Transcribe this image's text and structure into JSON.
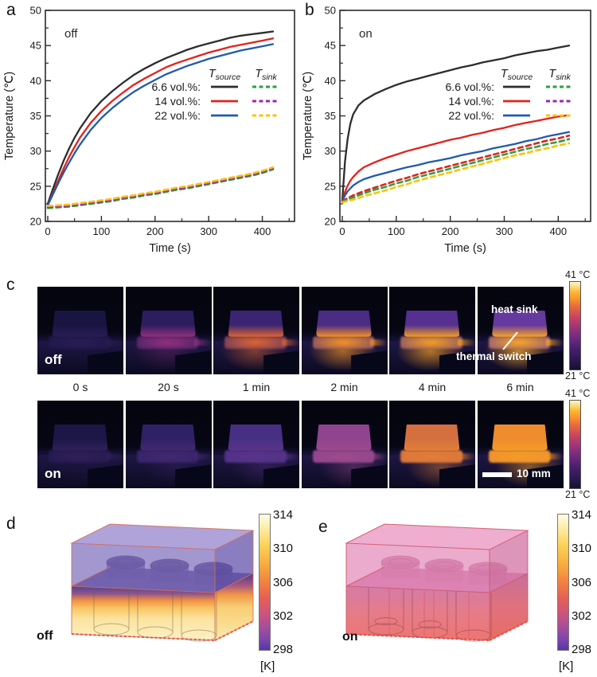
{
  "panel_letters": {
    "a": "a",
    "b": "b",
    "c": "c",
    "d": "d",
    "e": "e"
  },
  "chart_data": [
    {
      "id": "a",
      "type": "line",
      "inside_label": "off",
      "xlabel": "Time (s)",
      "ylabel": "Temperature (℃)",
      "xlim": [
        0,
        460
      ],
      "ylim": [
        20,
        50
      ],
      "xticks": [
        0,
        100,
        200,
        300,
        400
      ],
      "yticks": [
        20,
        25,
        30,
        35,
        40,
        45,
        50
      ],
      "legend": {
        "col_headers": [
          "T_source",
          "T_sink"
        ],
        "rows": [
          {
            "label": "6.6 vol.%:",
            "source_color": "#2d2d2d",
            "sink_color": "#2f9e44"
          },
          {
            "label": "14 vol.%:",
            "source_color": "#e3211c",
            "sink_color": "#9c27b0"
          },
          {
            "label": "22 vol.%:",
            "source_color": "#1f5bab",
            "sink_color": "#ffc107"
          }
        ]
      },
      "series": [
        {
          "name": "6.6 vol.% T_source",
          "color": "#2d2d2d",
          "style": "solid",
          "x": [
            0,
            10,
            20,
            30,
            40,
            50,
            60,
            80,
            100,
            120,
            140,
            160,
            180,
            200,
            220,
            240,
            260,
            280,
            300,
            320,
            340,
            360,
            380,
            400,
            420
          ],
          "y": [
            22.5,
            24.7,
            26.8,
            28.7,
            30.4,
            31.9,
            33.2,
            35.4,
            37.1,
            38.5,
            39.7,
            40.8,
            41.7,
            42.5,
            43.2,
            43.8,
            44.4,
            44.9,
            45.3,
            45.7,
            46.1,
            46.4,
            46.6,
            46.8,
            47.0
          ]
        },
        {
          "name": "14 vol.% T_source",
          "color": "#e3211c",
          "style": "solid",
          "x": [
            0,
            10,
            20,
            30,
            40,
            50,
            60,
            80,
            100,
            120,
            140,
            160,
            180,
            200,
            220,
            240,
            260,
            280,
            300,
            320,
            340,
            360,
            380,
            400,
            420
          ],
          "y": [
            22.3,
            24.1,
            25.9,
            27.6,
            29.2,
            30.6,
            31.9,
            34.0,
            35.7,
            37.1,
            38.3,
            39.4,
            40.3,
            41.1,
            41.9,
            42.5,
            43.0,
            43.5,
            44.0,
            44.4,
            44.8,
            45.1,
            45.4,
            45.7,
            46.0
          ]
        },
        {
          "name": "22 vol.% T_source",
          "color": "#1f5bab",
          "style": "solid",
          "x": [
            0,
            10,
            20,
            30,
            40,
            50,
            60,
            80,
            100,
            120,
            140,
            160,
            180,
            200,
            220,
            240,
            260,
            280,
            300,
            320,
            340,
            360,
            380,
            400,
            420
          ],
          "y": [
            22.3,
            23.9,
            25.5,
            27.0,
            28.4,
            29.7,
            30.9,
            33.0,
            34.7,
            36.1,
            37.3,
            38.4,
            39.3,
            40.1,
            40.9,
            41.5,
            42.1,
            42.6,
            43.1,
            43.5,
            43.9,
            44.3,
            44.6,
            44.9,
            45.2
          ]
        },
        {
          "name": "6.6 vol.% T_sink",
          "color": "#2f9e44",
          "style": "dashed",
          "x": [
            0,
            10,
            20,
            30,
            40,
            50,
            60,
            80,
            100,
            120,
            140,
            160,
            180,
            200,
            220,
            240,
            260,
            280,
            300,
            320,
            340,
            360,
            380,
            400,
            420
          ],
          "y": [
            21.9,
            21.95,
            22.0,
            22.05,
            22.1,
            22.2,
            22.3,
            22.5,
            22.7,
            22.9,
            23.2,
            23.4,
            23.7,
            23.9,
            24.2,
            24.5,
            24.7,
            25.0,
            25.3,
            25.6,
            25.9,
            26.2,
            26.5,
            26.9,
            27.4
          ]
        },
        {
          "name": "14 vol.% T_sink",
          "color": "#9c27b0",
          "style": "dashed",
          "x": [
            0,
            10,
            20,
            30,
            40,
            50,
            60,
            80,
            100,
            120,
            140,
            160,
            180,
            200,
            220,
            240,
            260,
            280,
            300,
            320,
            340,
            360,
            380,
            400,
            420
          ],
          "y": [
            22.05,
            22.1,
            22.15,
            22.2,
            22.25,
            22.35,
            22.45,
            22.65,
            22.85,
            23.05,
            23.35,
            23.55,
            23.85,
            24.05,
            24.35,
            24.65,
            24.85,
            25.15,
            25.45,
            25.75,
            26.05,
            26.35,
            26.65,
            27.05,
            27.55
          ]
        },
        {
          "name": "22 vol.% T_sink",
          "color": "#ffc107",
          "style": "dashed",
          "x": [
            0,
            10,
            20,
            30,
            40,
            50,
            60,
            80,
            100,
            120,
            140,
            160,
            180,
            200,
            220,
            240,
            260,
            280,
            300,
            320,
            340,
            360,
            380,
            400,
            420
          ],
          "y": [
            22.2,
            22.25,
            22.3,
            22.35,
            22.4,
            22.5,
            22.6,
            22.8,
            23.0,
            23.2,
            23.5,
            23.7,
            24.0,
            24.2,
            24.5,
            24.8,
            25.0,
            25.3,
            25.6,
            25.9,
            26.2,
            26.5,
            26.8,
            27.2,
            27.7
          ]
        }
      ]
    },
    {
      "id": "b",
      "type": "line",
      "inside_label": "on",
      "xlabel": "Time (s)",
      "ylabel": "Temperature (℃)",
      "xlim": [
        0,
        460
      ],
      "ylim": [
        20,
        50
      ],
      "xticks": [
        0,
        100,
        200,
        300,
        400
      ],
      "yticks": [
        20,
        25,
        30,
        35,
        40,
        45,
        50
      ],
      "legend": {
        "col_headers": [
          "T_source",
          "T_sink"
        ],
        "rows": [
          {
            "label": "6.6 vol.%:",
            "source_color": "#2d2d2d",
            "sink_color": "#2f9e44"
          },
          {
            "label": "14 vol.%:",
            "source_color": "#e3211c",
            "sink_color": "#9c27b0"
          },
          {
            "label": "22 vol.%:",
            "source_color": "#1f5bab",
            "sink_color": "#ffc107"
          }
        ]
      },
      "series": [
        {
          "name": "6.6 vol.% T_source",
          "color": "#2d2d2d",
          "style": "solid",
          "x": [
            0,
            5,
            10,
            15,
            20,
            30,
            40,
            60,
            80,
            100,
            120,
            140,
            160,
            180,
            200,
            220,
            240,
            260,
            280,
            300,
            320,
            340,
            360,
            380,
            400,
            420
          ],
          "y": [
            23.0,
            28.5,
            31.8,
            33.9,
            35.2,
            36.5,
            37.2,
            38.1,
            38.8,
            39.4,
            39.9,
            40.3,
            40.7,
            41.1,
            41.5,
            41.9,
            42.2,
            42.6,
            42.9,
            43.2,
            43.6,
            43.9,
            44.2,
            44.4,
            44.7,
            45.0
          ]
        },
        {
          "name": "14 vol.% T_source",
          "color": "#e3211c",
          "style": "solid",
          "x": [
            0,
            5,
            10,
            15,
            20,
            30,
            40,
            60,
            80,
            100,
            120,
            140,
            160,
            180,
            200,
            220,
            240,
            260,
            280,
            300,
            320,
            340,
            360,
            380,
            400,
            420
          ],
          "y": [
            22.8,
            24.2,
            25.1,
            25.8,
            26.3,
            27.1,
            27.7,
            28.4,
            29.0,
            29.5,
            30.0,
            30.4,
            30.8,
            31.2,
            31.6,
            31.9,
            32.3,
            32.6,
            33.0,
            33.3,
            33.7,
            34.0,
            34.3,
            34.6,
            34.9,
            35.1
          ]
        },
        {
          "name": "22 vol.% T_source",
          "color": "#1f5bab",
          "style": "solid",
          "x": [
            0,
            5,
            10,
            15,
            20,
            30,
            40,
            60,
            80,
            100,
            120,
            140,
            160,
            180,
            200,
            220,
            240,
            260,
            280,
            300,
            320,
            340,
            360,
            380,
            400,
            420
          ],
          "y": [
            22.9,
            23.7,
            24.3,
            24.7,
            25.1,
            25.6,
            26.0,
            26.5,
            26.9,
            27.3,
            27.7,
            28.0,
            28.4,
            28.7,
            29.0,
            29.4,
            29.7,
            30.0,
            30.4,
            30.7,
            31.0,
            31.4,
            31.7,
            32.1,
            32.4,
            32.7
          ]
        },
        {
          "name": "14 vol.% T_sink",
          "color": "#e3211c",
          "style": "dashed",
          "x": [
            0,
            5,
            10,
            15,
            20,
            30,
            40,
            60,
            80,
            100,
            120,
            140,
            160,
            180,
            200,
            220,
            240,
            260,
            280,
            300,
            320,
            340,
            360,
            380,
            400,
            420
          ],
          "y": [
            22.9,
            23.1,
            23.3,
            23.5,
            23.7,
            24.0,
            24.3,
            24.8,
            25.3,
            25.8,
            26.2,
            26.7,
            27.1,
            27.5,
            27.9,
            28.3,
            28.7,
            29.1,
            29.5,
            29.9,
            30.3,
            30.7,
            31.1,
            31.5,
            31.8,
            32.2
          ]
        },
        {
          "name": "6.6 vol.% T_sink",
          "color": "#2f9e44",
          "style": "dashed",
          "x": [
            0,
            5,
            10,
            15,
            20,
            30,
            40,
            60,
            80,
            100,
            120,
            140,
            160,
            180,
            200,
            220,
            240,
            260,
            280,
            300,
            320,
            340,
            360,
            380,
            400,
            420
          ],
          "y": [
            22.8,
            23.0,
            23.1,
            23.3,
            23.4,
            23.7,
            24.0,
            24.5,
            24.9,
            25.4,
            25.8,
            26.3,
            26.7,
            27.1,
            27.5,
            27.9,
            28.3,
            28.7,
            29.1,
            29.5,
            29.9,
            30.3,
            30.6,
            31.0,
            31.3,
            31.7
          ]
        },
        {
          "name": "22 vol.% T_sink",
          "color": "#ffc107",
          "style": "dashed",
          "x": [
            0,
            5,
            10,
            15,
            20,
            30,
            40,
            60,
            80,
            100,
            120,
            140,
            160,
            180,
            200,
            220,
            240,
            260,
            280,
            300,
            320,
            340,
            360,
            380,
            400,
            420
          ],
          "y": [
            22.7,
            22.8,
            22.9,
            23.0,
            23.1,
            23.3,
            23.6,
            24.0,
            24.4,
            24.9,
            25.3,
            25.8,
            26.2,
            26.6,
            27.0,
            27.4,
            27.8,
            28.2,
            28.6,
            29.0,
            29.4,
            29.7,
            30.1,
            30.4,
            30.8,
            31.1
          ]
        }
      ]
    }
  ],
  "panel_c": {
    "time_labels": [
      "0 s",
      "20 s",
      "1 min",
      "2 min",
      "4 min",
      "6 min"
    ],
    "colorbar_top_label": "41 °C",
    "colorbar_bottom_label": "21 °C",
    "annotations": {
      "heat_sink": "heat sink",
      "thermal_switch": "thermal switch"
    },
    "scalebar_label": "10 mm",
    "rows": [
      {
        "label": "off",
        "frames": [
          {
            "block": "#191542",
            "strip": "#2a1c55",
            "glow": 0.0
          },
          {
            "block": "#2c1d5e",
            "strip": "#93307c",
            "glow": 0.3
          },
          {
            "block": "#3b2573",
            "strip": "#e0662f",
            "glow": 0.5
          },
          {
            "block": "#4b2c85",
            "strip": "#f69322",
            "glow": 0.65
          },
          {
            "block": "#553090",
            "strip": "#f79f1f",
            "glow": 0.7
          },
          {
            "block": "#66399e",
            "strip": "#f9a623",
            "glow": 0.75
          }
        ]
      },
      {
        "label": "on",
        "frames": [
          {
            "block": "#1c1747",
            "strip": "#31205a",
            "glow": 0.15
          },
          {
            "block": "#2f2166",
            "strip": "#43286f",
            "glow": 0.3
          },
          {
            "block": "#473084",
            "strip": "#5b3389",
            "glow": 0.35
          },
          {
            "block": "#8f4490",
            "strip": "#9b4a8b",
            "glow": 0.4
          },
          {
            "block": "#d4703f",
            "strip": "#e27e36",
            "glow": 0.45
          },
          {
            "block": "#ee8c2e",
            "strip": "#f49b27",
            "glow": 0.5
          }
        ]
      }
    ]
  },
  "panel_d": {
    "label": "off",
    "colorbar": {
      "ticks": [
        "314",
        "310",
        "306",
        "302",
        "298"
      ],
      "unit": "[K]"
    }
  },
  "panel_e": {
    "label": "on",
    "colorbar": {
      "ticks": [
        "314",
        "310",
        "306",
        "302",
        "298"
      ],
      "unit": "[K]"
    }
  }
}
